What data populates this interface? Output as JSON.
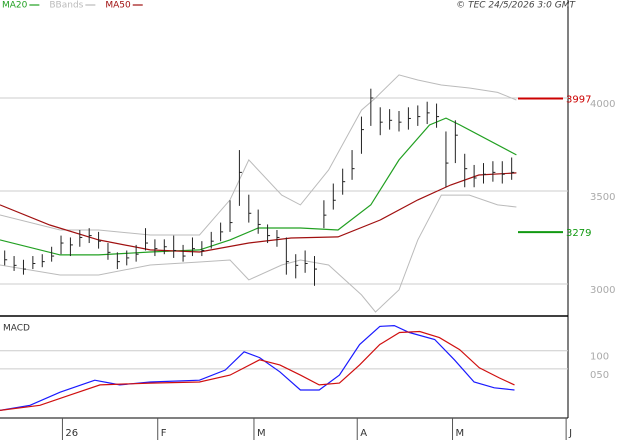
{
  "chart_data": [
    {
      "type": "ohlc",
      "copyright": "© TEC 24/5/2026 3:0 GMT",
      "xlim": [
        0,
        121
      ],
      "ylim": [
        2833,
        4527
      ],
      "yticks": [
        4000,
        3500,
        3000
      ],
      "grid": true,
      "bars": {
        "color": "#222222",
        "x": [
          1,
          3,
          5,
          7,
          9,
          11,
          13,
          15,
          17,
          19,
          21,
          23,
          25,
          27,
          29,
          31,
          33,
          35,
          37,
          39,
          41,
          43,
          45,
          47,
          49,
          51,
          53,
          55,
          57,
          59,
          61,
          63,
          65,
          67,
          69,
          71,
          73,
          75,
          77,
          79,
          81,
          83,
          85,
          87,
          89,
          91,
          93,
          95,
          97,
          99,
          101,
          103,
          105,
          107,
          109
        ],
        "close": [
          3130,
          3100,
          3080,
          3110,
          3120,
          3150,
          3220,
          3210,
          3250,
          3260,
          3230,
          3170,
          3120,
          3140,
          3160,
          3220,
          3190,
          3200,
          3180,
          3150,
          3190,
          3180,
          3230,
          3280,
          3330,
          3600,
          3380,
          3320,
          3260,
          3250,
          3120,
          3100,
          3110,
          3080,
          3370,
          3450,
          3550,
          3620,
          3830,
          4000,
          3870,
          3880,
          3870,
          3890,
          3900,
          3920,
          3900,
          3650,
          3800,
          3620,
          3570,
          3590,
          3600,
          3590,
          3600
        ],
        "high": [
          3180,
          3150,
          3130,
          3150,
          3160,
          3200,
          3260,
          3250,
          3290,
          3300,
          3280,
          3220,
          3170,
          3180,
          3210,
          3300,
          3240,
          3240,
          3260,
          3210,
          3250,
          3230,
          3280,
          3330,
          3450,
          3720,
          3480,
          3400,
          3320,
          3290,
          3250,
          3160,
          3180,
          3150,
          3450,
          3540,
          3620,
          3720,
          3900,
          4050,
          3950,
          3940,
          3930,
          3950,
          3960,
          3980,
          3970,
          3820,
          3880,
          3700,
          3640,
          3650,
          3660,
          3660,
          3680
        ],
        "low": [
          3100,
          3070,
          3050,
          3080,
          3090,
          3120,
          3160,
          3150,
          3200,
          3220,
          3190,
          3130,
          3080,
          3100,
          3120,
          3180,
          3150,
          3160,
          3140,
          3120,
          3150,
          3150,
          3190,
          3230,
          3280,
          3420,
          3330,
          3270,
          3220,
          3200,
          3050,
          3030,
          3060,
          2990,
          3300,
          3400,
          3480,
          3560,
          3700,
          3850,
          3800,
          3830,
          3820,
          3830,
          3850,
          3860,
          3840,
          3520,
          3650,
          3520,
          3520,
          3540,
          3550,
          3540,
          3560
        ]
      },
      "series": [
        {
          "name": "MA20",
          "color": "#22a022",
          "x": [
            0,
            12.8,
            21,
            32,
            42.5,
            49,
            55,
            64,
            72,
            79,
            85,
            91.5,
            95,
            98,
            110
          ],
          "values": [
            3237,
            3156,
            3156,
            3172,
            3183,
            3237,
            3301,
            3301,
            3290,
            3425,
            3667,
            3855,
            3892,
            3855,
            3694
          ]
        },
        {
          "name": "BBands",
          "color": "#bbbbbb",
          "x": [
            0,
            12.8,
            21,
            32,
            42.5,
            49,
            53,
            60,
            64,
            70,
            77,
            80,
            85,
            89,
            94,
            100,
            106,
            110
          ],
          "upper": [
            3371,
            3290,
            3290,
            3263,
            3263,
            3452,
            3667,
            3478,
            3425,
            3613,
            3935,
            4000,
            4124,
            4097,
            4070,
            4054,
            4030,
            3989
          ],
          "lower": [
            3102,
            3048,
            3048,
            3102,
            3118,
            3129,
            3022,
            3102,
            3129,
            3102,
            2941,
            2849,
            2968,
            3237,
            3478,
            3478,
            3425,
            3414
          ]
        },
        {
          "name": "MA50",
          "color": "#a01010",
          "x": [
            0,
            10.6,
            21,
            32,
            42.5,
            53,
            62,
            72,
            81,
            89,
            96,
            102,
            110
          ],
          "values": [
            3425,
            3317,
            3237,
            3183,
            3172,
            3220,
            3247,
            3253,
            3344,
            3452,
            3532,
            3586,
            3597
          ]
        }
      ],
      "markers": [
        {
          "value": 3997,
          "color": "#cc0000"
        },
        {
          "value": 3279,
          "color": "#119911"
        }
      ]
    },
    {
      "type": "line",
      "title": "MACD",
      "xlim": [
        0,
        121
      ],
      "ylim": [
        -85,
        190
      ],
      "yticks": [
        100,
        {
          "value": 50,
          "label": "050"
        }
      ],
      "grid": true,
      "xticks": [
        {
          "value": 13.3,
          "label": "26"
        },
        {
          "value": 33.6,
          "label": "F"
        },
        {
          "value": 54.1,
          "label": "M"
        },
        {
          "value": 76.1,
          "label": "A"
        },
        {
          "value": 96.4,
          "label": "M"
        },
        {
          "value": 120.6,
          "label": "J"
        }
      ],
      "series": [
        {
          "color": "#1a1aff",
          "x": [
            0,
            6.4,
            12.8,
            20.2,
            25.5,
            32,
            42.5,
            48,
            52,
            55.3,
            59.6,
            64,
            68,
            72.3,
            76.6,
            80.9,
            84,
            87.2,
            92.6,
            96.8,
            101,
            105.3,
            109.6
          ],
          "values": [
            -64,
            -50,
            -14,
            19,
            6,
            14,
            19,
            47,
            97,
            81,
            42,
            -8,
            -8,
            33,
            117,
            167,
            169,
            150,
            131,
            75,
            14,
            -2,
            -8
          ]
        },
        {
          "color": "#d01010",
          "x": [
            0,
            8.5,
            14.9,
            21.3,
            32,
            42.5,
            49,
            55.3,
            59.6,
            64,
            68,
            72.3,
            76.6,
            80.9,
            85.1,
            89.4,
            93.6,
            97.9,
            102.1,
            106.4,
            109.6
          ],
          "values": [
            -64,
            -50,
            -22,
            6,
            11,
            14,
            33,
            75,
            61,
            33,
            6,
            11,
            61,
            117,
            150,
            153,
            136,
            103,
            53,
            25,
            6
          ]
        }
      ]
    }
  ]
}
